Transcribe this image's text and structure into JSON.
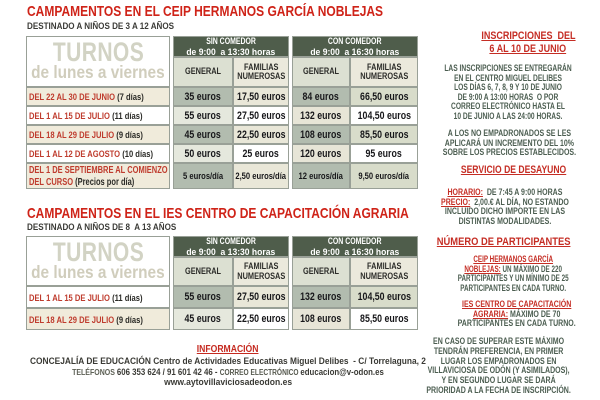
{
  "colors": {
    "title_red": "#cf2318",
    "accent_red": "#c52d24",
    "label_red": "#bf3c2e",
    "header_green": "#4f5d4b",
    "sidebar_green": "#4c5e51",
    "shaded_cell": "#b2bcaf",
    "beige_cell": "#f0ebdb"
  },
  "section1": {
    "title": "CAMPAMENTOS EN EL CEIP HERMANOS GARCÍA NOBLEJAS",
    "subtitle": "DESTINADO A NIÑOS DE 3 A 12 AÑOS"
  },
  "section2": {
    "title": "CAMPAMENTOS EN EL IES CENTRO DE CAPACITACIÓN AGRARIA",
    "subtitle": "DESTINADO A NIÑOS DE 8  A 13 AÑOS"
  },
  "table_common": {
    "corner_line1": "TURNOS",
    "corner_line2": "de lunes a viernes",
    "group1_line1": "SIN COMEDOR",
    "group1_line2": "de 9:00  a 13:30 horas",
    "group2_line1": "CON COMEDOR",
    "group2_line2": "de 9:00  a 16:30 horas",
    "col_general": "GENERAL",
    "col_familias": [
      "FAMILIAS",
      "NUMEROSAS"
    ]
  },
  "table1": {
    "rows": [
      {
        "label": "DEL 22 AL 30 DE JUNIO",
        "note": "(7 días)",
        "v1": "35 euros",
        "v2": "17,50 euros",
        "v3": "84 euros",
        "v4": "66,50 euros"
      },
      {
        "label": "DEL 1 AL 15 DE JULIO",
        "note": "(11 días)",
        "v1": "55 euros",
        "v2": "27,50 euros",
        "v3": "132 euros",
        "v4": "104,50 euros"
      },
      {
        "label": "DEL 18 AL 29 DE JULIO",
        "note": "(9 días)",
        "v1": "45 euros",
        "v2": "22,50 euros",
        "v3": "108 euros",
        "v4": "85,50 euros"
      },
      {
        "label": "DEL 1 AL 12 DE AGOSTO",
        "note": "(10 días)",
        "v1": "50 euros",
        "v2": "25 euros",
        "v3": "120 euros",
        "v4": "95 euros"
      },
      {
        "label": "DEL 1 DE SEPTIEMBRE AL COMIENZO\nDEL CURSO",
        "note": "(Precios por día)",
        "v1": "5 euros/día",
        "v2": "2,50 euros/día",
        "v3": "12 euros/día",
        "v4": "9,50 euros/día"
      }
    ]
  },
  "table2": {
    "rows": [
      {
        "label": "DEL 1 AL 15 DE JULIO",
        "note": "(11 días)",
        "v1": "55 euros",
        "v2": "27,50 euros",
        "v3": "132 euros",
        "v4": "104,50 euros"
      },
      {
        "label": "DEL 18 AL 29 DE JULIO",
        "note": "(9 días)",
        "v1": "45 euros",
        "v2": "22,50 euros",
        "v3": "108 euros",
        "v4": "85,50 euros"
      }
    ]
  },
  "sidebar": {
    "h1": [
      "INSCRIPCIONES  DEL",
      "6 AL 10 DE JUNIO"
    ],
    "p1": [
      "LAS INSCRIPCIONES SE ENTREGARÁN",
      "EN EL CENTRO MIGUEL DELIBES",
      "LOS DÍAS 6, 7, 8, 9 Y 10 DE JUNIO",
      "DE 9:00 A 13:00 HORAS  O POR",
      "CORREO ELECTRÓNICO HASTA EL",
      "10 DE JUNIO A LAS 24:00 HORAS."
    ],
    "p2": [
      "A LOS NO EMPADRONADOS SE LES",
      "APLICARÁ UN INCREMENTO DEL 10%",
      "SOBRE LOS PRECIOS ESTABLECIDOS."
    ],
    "h2": "SERVICIO DE DESAYUNO",
    "horario_label": "HORARIO:",
    "horario_rest": "  DE 7:45 A 9:00 HORAS",
    "precio_label": "PRECIO:",
    "precio_rest": "  2,00.€ AL DÍA, NO ESTANDO",
    "precio_line3": "INCLUIDO DICHO IMPORTE EN LAS",
    "precio_line4": "DISTINTAS MODALIDADES.",
    "h3": "NÚMERO DE PARTICIPANTES",
    "ceip_red1": "CEIP HERMANOS GARCÍA",
    "ceip_red2": "NOBLEJAS:",
    "ceip_rest2": " UN MÁXIMO DE 220",
    "ceip_line3": "PARTICIPANTES Y UN MÍNIMO DE 25",
    "ceip_line4": "PARTICIPANTES EN CADA TURNO.",
    "ies_red1": "IES CENTRO DE CAPACITACIÓN",
    "ies_red2": "AGRARIA:",
    "ies_rest2": " MÁXIMO DE 70",
    "ies_line3": "PARTICIPANTES EN CADA TURNO.",
    "p6": [
      "EN CASO DE SUPERAR ESTE MÁXIMO",
      "TENDRÁN PREFERENCIA, EN PRIMER",
      "LUGAR LOS EMPADRONADOS EN",
      "VILLAVICIOSA DE ODÓN (Y ASIMILADOS),",
      "Y EN SEGUNDO LUGAR SE DARÁ",
      "PRIORIDAD A LA FECHA DE INSCRIPCIÓN."
    ]
  },
  "footer": {
    "heading": "INFORMACIÓN",
    "line1_org": "CONCEJALÍA DE EDUCACIÓN",
    "line1_rest": " Centro de Actividades Educativas Miguel Delibes  - C/ Torrelaguna, 2",
    "tel_label": "TELÉFONOS ",
    "tel_numbers": "606 353 624 / 91 601 42 46",
    "tel_sep": " - ",
    "email_label": "CORREO ELECTRÓNICO ",
    "email": "educacion@v-odon.es",
    "website": "www.aytovillaviciosadeodon.es"
  }
}
